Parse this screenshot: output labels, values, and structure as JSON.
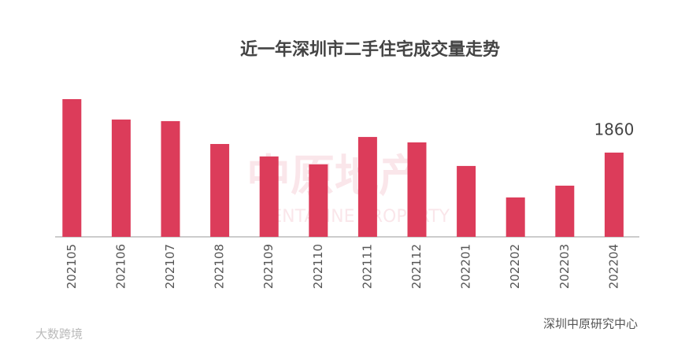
{
  "chart_data": {
    "type": "bar",
    "title": "近一年深圳市二手住宅成交量走势",
    "categories": [
      "202105",
      "202106",
      "202107",
      "202108",
      "202109",
      "202110",
      "202111",
      "202112",
      "202201",
      "202202",
      "202203",
      "202204"
    ],
    "values": [
      3040,
      2590,
      2555,
      2050,
      1775,
      1600,
      2205,
      2085,
      1565,
      870,
      1130,
      1860
    ],
    "color": "#dc3c5a",
    "watermark": [
      "中原地产",
      "CENTALINE PROPERTY"
    ],
    "source": "深圳中原研究中心",
    "logo": "大数跨境"
  }
}
